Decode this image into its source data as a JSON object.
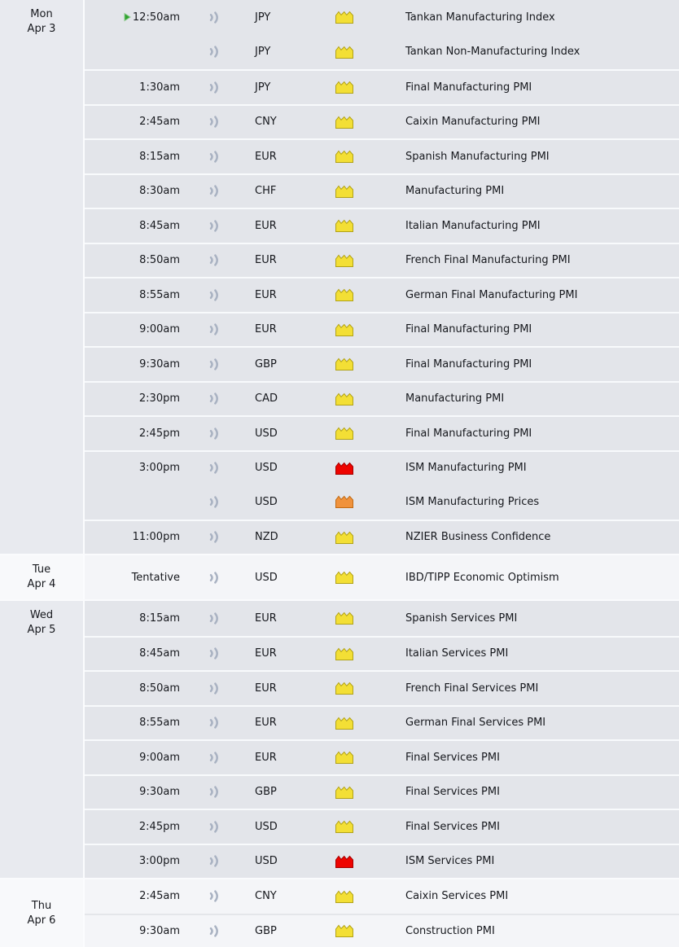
{
  "colors": {
    "section_dark_bg": "#e3e5ea",
    "section_dark_datecol_bg": "#e8eaef",
    "section_light_bg": "#f4f5f8",
    "section_light_datecol_bg": "#f8f9fb",
    "separator_on_dark": "#f8fafc",
    "separator_on_light": "#e4e6ea",
    "day_boundary": "#fafbfd",
    "text": "#16181d",
    "detail_icon": "#a9b2c2",
    "upcoming_arrow_fill": "#2fa32f",
    "upcoming_arrow_edge": "#8cc98c",
    "impact": {
      "low": {
        "fill": "#f3df35",
        "stroke": "#b1a218"
      },
      "medium": {
        "fill": "#f0923c",
        "stroke": "#c06a14"
      },
      "high": {
        "fill": "#ee0400",
        "stroke": "#a30000"
      }
    }
  },
  "icons": {
    "detail": "signal-arcs-icon",
    "upcoming": "green-play-arrow-icon",
    "impact_low": "yellow-impact-folder-icon",
    "impact_medium": "orange-impact-folder-icon",
    "impact_high": "red-impact-folder-icon"
  },
  "days": [
    {
      "weekday": "Mon",
      "date": "Apr 3",
      "events": [
        {
          "time": "12:50am",
          "upcoming": true,
          "currency": "JPY",
          "impact": "low",
          "title": "Tankan Manufacturing Index"
        },
        {
          "time": "",
          "upcoming": false,
          "currency": "JPY",
          "impact": "low",
          "title": "Tankan Non-Manufacturing Index"
        },
        {
          "time": "1:30am",
          "upcoming": false,
          "currency": "JPY",
          "impact": "low",
          "title": "Final Manufacturing PMI"
        },
        {
          "time": "2:45am",
          "upcoming": false,
          "currency": "CNY",
          "impact": "low",
          "title": "Caixin Manufacturing PMI"
        },
        {
          "time": "8:15am",
          "upcoming": false,
          "currency": "EUR",
          "impact": "low",
          "title": "Spanish Manufacturing PMI"
        },
        {
          "time": "8:30am",
          "upcoming": false,
          "currency": "CHF",
          "impact": "low",
          "title": "Manufacturing PMI"
        },
        {
          "time": "8:45am",
          "upcoming": false,
          "currency": "EUR",
          "impact": "low",
          "title": "Italian Manufacturing PMI"
        },
        {
          "time": "8:50am",
          "upcoming": false,
          "currency": "EUR",
          "impact": "low",
          "title": "French Final Manufacturing PMI"
        },
        {
          "time": "8:55am",
          "upcoming": false,
          "currency": "EUR",
          "impact": "low",
          "title": "German Final Manufacturing PMI"
        },
        {
          "time": "9:00am",
          "upcoming": false,
          "currency": "EUR",
          "impact": "low",
          "title": "Final Manufacturing PMI"
        },
        {
          "time": "9:30am",
          "upcoming": false,
          "currency": "GBP",
          "impact": "low",
          "title": "Final Manufacturing PMI"
        },
        {
          "time": "2:30pm",
          "upcoming": false,
          "currency": "CAD",
          "impact": "low",
          "title": "Manufacturing PMI"
        },
        {
          "time": "2:45pm",
          "upcoming": false,
          "currency": "USD",
          "impact": "low",
          "title": "Final Manufacturing PMI"
        },
        {
          "time": "3:00pm",
          "upcoming": false,
          "currency": "USD",
          "impact": "high",
          "title": "ISM Manufacturing PMI"
        },
        {
          "time": "",
          "upcoming": false,
          "currency": "USD",
          "impact": "medium",
          "title": "ISM Manufacturing Prices"
        },
        {
          "time": "11:00pm",
          "upcoming": false,
          "currency": "NZD",
          "impact": "low",
          "title": "NZIER Business Confidence"
        }
      ]
    },
    {
      "weekday": "Tue",
      "date": "Apr 4",
      "events": [
        {
          "time": "Tentative",
          "upcoming": false,
          "currency": "USD",
          "impact": "low",
          "title": "IBD/TIPP Economic Optimism"
        }
      ]
    },
    {
      "weekday": "Wed",
      "date": "Apr 5",
      "events": [
        {
          "time": "8:15am",
          "upcoming": false,
          "currency": "EUR",
          "impact": "low",
          "title": "Spanish Services PMI"
        },
        {
          "time": "8:45am",
          "upcoming": false,
          "currency": "EUR",
          "impact": "low",
          "title": "Italian Services PMI"
        },
        {
          "time": "8:50am",
          "upcoming": false,
          "currency": "EUR",
          "impact": "low",
          "title": "French Final Services PMI"
        },
        {
          "time": "8:55am",
          "upcoming": false,
          "currency": "EUR",
          "impact": "low",
          "title": "German Final Services PMI"
        },
        {
          "time": "9:00am",
          "upcoming": false,
          "currency": "EUR",
          "impact": "low",
          "title": "Final Services PMI"
        },
        {
          "time": "9:30am",
          "upcoming": false,
          "currency": "GBP",
          "impact": "low",
          "title": "Final Services PMI"
        },
        {
          "time": "2:45pm",
          "upcoming": false,
          "currency": "USD",
          "impact": "low",
          "title": "Final Services PMI"
        },
        {
          "time": "3:00pm",
          "upcoming": false,
          "currency": "USD",
          "impact": "high",
          "title": "ISM Services PMI"
        }
      ]
    },
    {
      "weekday": "Thu",
      "date": "Apr 6",
      "events": [
        {
          "time": "2:45am",
          "upcoming": false,
          "currency": "CNY",
          "impact": "low",
          "title": "Caixin Services PMI"
        },
        {
          "time": "9:30am",
          "upcoming": false,
          "currency": "GBP",
          "impact": "low",
          "title": "Construction PMI"
        }
      ]
    }
  ]
}
